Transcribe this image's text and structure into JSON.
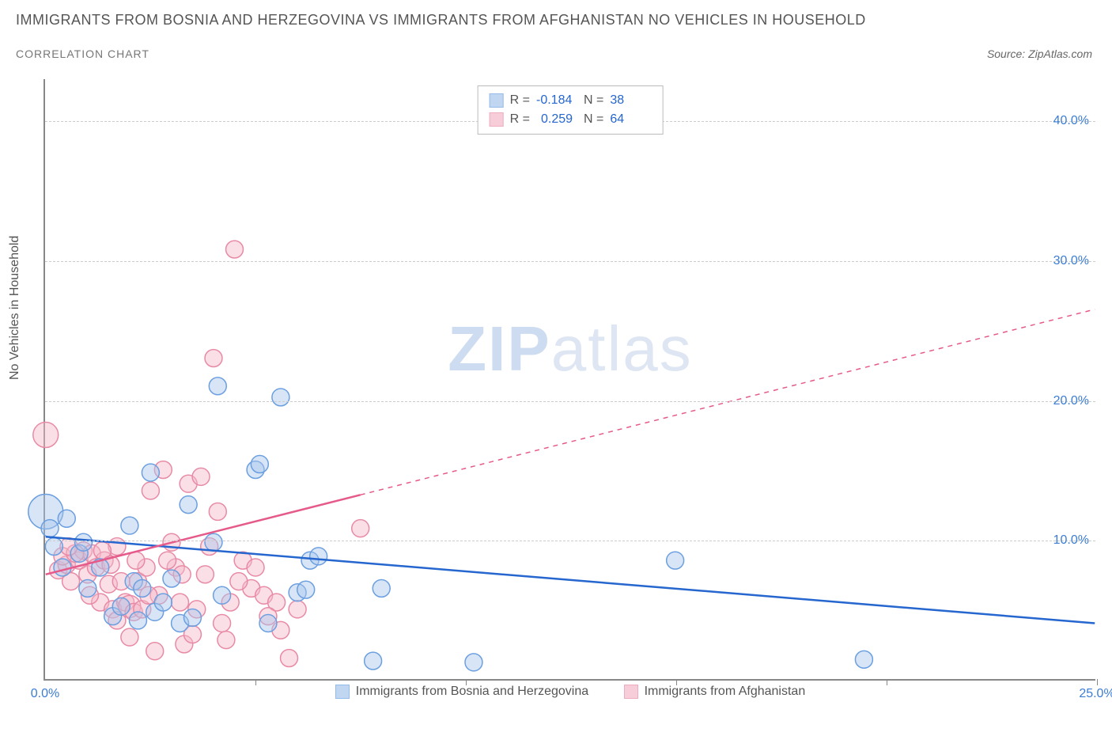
{
  "title": "IMMIGRANTS FROM BOSNIA AND HERZEGOVINA VS IMMIGRANTS FROM AFGHANISTAN NO VEHICLES IN HOUSEHOLD",
  "subtitle": "CORRELATION CHART",
  "source_label": "Source:",
  "source_site": "ZipAtlas.com",
  "watermark_a": "ZIP",
  "watermark_b": "atlas",
  "ylabel": "No Vehicles in Household",
  "chart": {
    "type": "scatter",
    "xlim": [
      0,
      25
    ],
    "ylim": [
      0,
      43
    ],
    "y_ticks": [
      10,
      20,
      30,
      40
    ],
    "y_tick_labels": [
      "10.0%",
      "20.0%",
      "30.0%",
      "40.0%"
    ],
    "x_ticks": [
      0,
      5,
      10,
      15,
      20,
      25
    ],
    "x_tick_labels": [
      "0.0%",
      "",
      "",
      "",
      "",
      "25.0%"
    ],
    "grid_color": "#cccccc",
    "axis_color": "#888888",
    "background": "#ffffff",
    "tick_label_color": "#3b7cd4",
    "series": [
      {
        "name": "Immigrants from Bosnia and Herzegovina",
        "key": "bosnia",
        "fill": "#a8c5ea",
        "stroke": "#6b9fe0",
        "fill_opacity": 0.45,
        "marker_r": 11,
        "line_color": "#2566cf",
        "line_width": 2.5,
        "trend": {
          "x1": 0,
          "y1": 10.2,
          "x2": 25,
          "y2": 4.0,
          "solid_until_x": 25
        },
        "stats": {
          "R": "-0.184",
          "N": "38"
        },
        "points": [
          [
            0.0,
            12.0,
            22
          ],
          [
            0.1,
            10.8,
            11
          ],
          [
            0.2,
            9.5,
            11
          ],
          [
            0.4,
            8.0,
            11
          ],
          [
            0.8,
            9.0,
            11
          ],
          [
            1.0,
            6.5,
            11
          ],
          [
            1.3,
            8.0,
            11
          ],
          [
            1.6,
            4.5,
            11
          ],
          [
            1.8,
            5.2,
            11
          ],
          [
            2.0,
            11.0,
            11
          ],
          [
            2.2,
            4.2,
            11
          ],
          [
            2.5,
            14.8,
            11
          ],
          [
            2.6,
            4.8,
            11
          ],
          [
            2.8,
            5.5,
            11
          ],
          [
            3.2,
            4.0,
            11
          ],
          [
            3.4,
            12.5,
            11
          ],
          [
            3.5,
            4.4,
            11
          ],
          [
            4.0,
            9.8,
            11
          ],
          [
            4.1,
            21.0,
            11
          ],
          [
            5.0,
            15.0,
            11
          ],
          [
            5.1,
            15.4,
            11
          ],
          [
            5.3,
            4.0,
            11
          ],
          [
            5.6,
            20.2,
            11
          ],
          [
            6.0,
            6.2,
            11
          ],
          [
            6.2,
            6.4,
            11
          ],
          [
            6.3,
            8.5,
            11
          ],
          [
            6.5,
            8.8,
            11
          ],
          [
            7.8,
            1.3,
            11
          ],
          [
            8.0,
            6.5,
            11
          ],
          [
            10.2,
            1.2,
            11
          ],
          [
            15.0,
            8.5,
            11
          ],
          [
            19.5,
            1.4,
            11
          ],
          [
            2.1,
            7.0,
            11
          ],
          [
            2.3,
            6.5,
            11
          ],
          [
            3.0,
            7.2,
            11
          ],
          [
            4.2,
            6.0,
            11
          ],
          [
            0.5,
            11.5,
            11
          ],
          [
            0.9,
            9.8,
            11
          ]
        ]
      },
      {
        "name": "Immigrants from Afghanistan",
        "key": "afghan",
        "fill": "#f4b9c9",
        "stroke": "#e88aa5",
        "fill_opacity": 0.45,
        "marker_r": 11,
        "line_color": "#e55a8a",
        "line_width": 2.5,
        "trend": {
          "x1": 0,
          "y1": 7.5,
          "x2": 25,
          "y2": 26.5,
          "solid_until_x": 7.5
        },
        "stats": {
          "R": "0.259",
          "N": "64"
        },
        "points": [
          [
            0.0,
            17.5,
            16
          ],
          [
            0.3,
            7.8,
            11
          ],
          [
            0.5,
            8.2,
            11
          ],
          [
            0.6,
            7.0,
            11
          ],
          [
            0.8,
            8.5,
            11
          ],
          [
            0.9,
            9.2,
            11
          ],
          [
            1.0,
            7.5,
            11
          ],
          [
            1.1,
            9.0,
            11
          ],
          [
            1.2,
            8.0,
            11
          ],
          [
            1.3,
            5.5,
            11
          ],
          [
            1.4,
            8.5,
            11
          ],
          [
            1.5,
            6.8,
            11
          ],
          [
            1.6,
            5.0,
            11
          ],
          [
            1.7,
            4.2,
            11
          ],
          [
            1.7,
            9.5,
            11
          ],
          [
            1.8,
            7.0,
            11
          ],
          [
            1.9,
            5.5,
            11
          ],
          [
            2.0,
            3.0,
            11
          ],
          [
            2.0,
            5.2,
            14
          ],
          [
            2.1,
            4.8,
            11
          ],
          [
            2.2,
            7.0,
            11
          ],
          [
            2.3,
            5.0,
            11
          ],
          [
            2.4,
            8.0,
            11
          ],
          [
            2.5,
            13.5,
            11
          ],
          [
            2.6,
            2.0,
            11
          ],
          [
            2.7,
            6.0,
            11
          ],
          [
            2.8,
            15.0,
            11
          ],
          [
            3.0,
            9.8,
            11
          ],
          [
            3.1,
            8.0,
            11
          ],
          [
            3.2,
            5.5,
            11
          ],
          [
            3.3,
            2.5,
            11
          ],
          [
            3.4,
            14.0,
            11
          ],
          [
            3.5,
            3.2,
            11
          ],
          [
            3.7,
            14.5,
            11
          ],
          [
            3.8,
            7.5,
            11
          ],
          [
            3.9,
            9.5,
            11
          ],
          [
            4.0,
            23.0,
            11
          ],
          [
            4.1,
            12.0,
            11
          ],
          [
            4.2,
            4.0,
            11
          ],
          [
            4.3,
            2.8,
            11
          ],
          [
            4.5,
            30.8,
            11
          ],
          [
            4.7,
            8.5,
            11
          ],
          [
            4.9,
            6.5,
            11
          ],
          [
            5.0,
            8.0,
            11
          ],
          [
            5.2,
            6.0,
            11
          ],
          [
            5.5,
            5.5,
            11
          ],
          [
            5.6,
            3.5,
            11
          ],
          [
            5.8,
            1.5,
            11
          ],
          [
            6.0,
            5.0,
            11
          ],
          [
            7.5,
            10.8,
            11
          ],
          [
            0.4,
            8.8,
            11
          ],
          [
            0.7,
            9.0,
            11
          ],
          [
            1.35,
            9.2,
            11
          ],
          [
            1.55,
            8.2,
            11
          ],
          [
            2.15,
            8.5,
            11
          ],
          [
            2.45,
            6.0,
            11
          ],
          [
            2.9,
            8.5,
            11
          ],
          [
            3.25,
            7.5,
            11
          ],
          [
            3.6,
            5.0,
            11
          ],
          [
            4.4,
            5.5,
            11
          ],
          [
            4.6,
            7.0,
            11
          ],
          [
            5.3,
            4.5,
            11
          ],
          [
            1.05,
            6.0,
            11
          ],
          [
            0.55,
            9.5,
            11
          ]
        ]
      }
    ]
  },
  "legend_top": {
    "r_label": "R =",
    "n_label": "N ="
  }
}
